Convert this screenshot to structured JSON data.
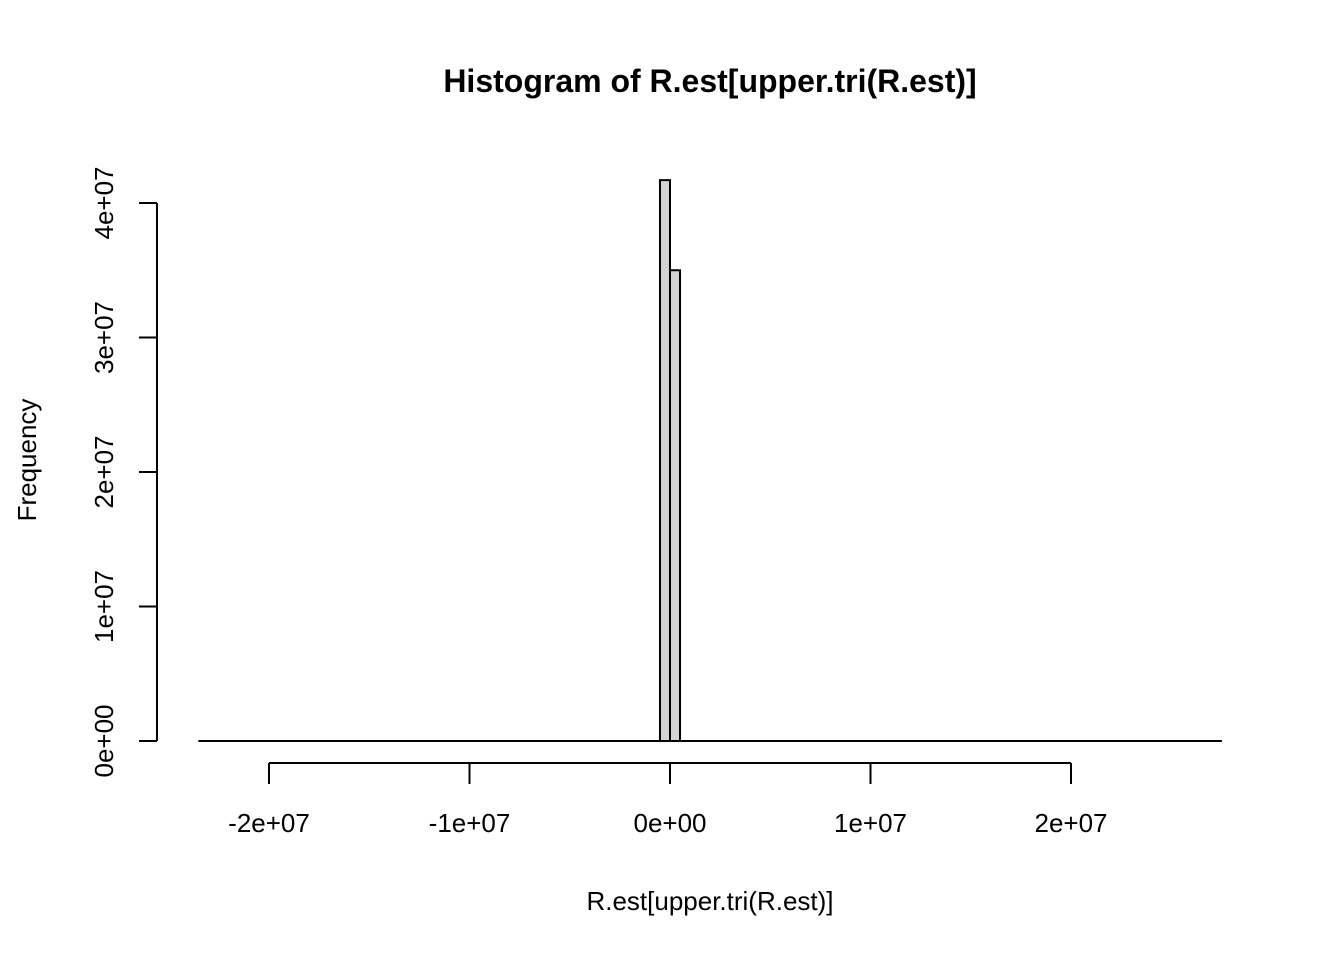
{
  "chart_data": {
    "type": "bar",
    "title": "Histogram of R.est[upper.tri(R.est)]",
    "xlabel": "R.est[upper.tri(R.est)]",
    "ylabel": "Frequency",
    "x_ticks": [
      -20000000,
      -10000000,
      0,
      10000000,
      20000000
    ],
    "x_tick_labels": [
      "-2e+07",
      "-1e+07",
      "0e+00",
      "1e+07",
      "2e+07"
    ],
    "y_ticks": [
      0,
      10000000,
      20000000,
      30000000,
      40000000
    ],
    "y_tick_labels": [
      "0e+00",
      "1e+07",
      "2e+07",
      "3e+07",
      "4e+07"
    ],
    "xlim": [
      -23500000,
      27500000
    ],
    "ylim": [
      0,
      42000000
    ],
    "bins": [
      {
        "start": -500000,
        "end": 0,
        "count": 41700000
      },
      {
        "start": 0,
        "end": 500000,
        "count": 35000000
      }
    ],
    "baseline_range": [
      -23500000,
      27500000
    ],
    "colors": {
      "bar_fill": "#d3d3d3",
      "bar_stroke": "#000000"
    }
  }
}
